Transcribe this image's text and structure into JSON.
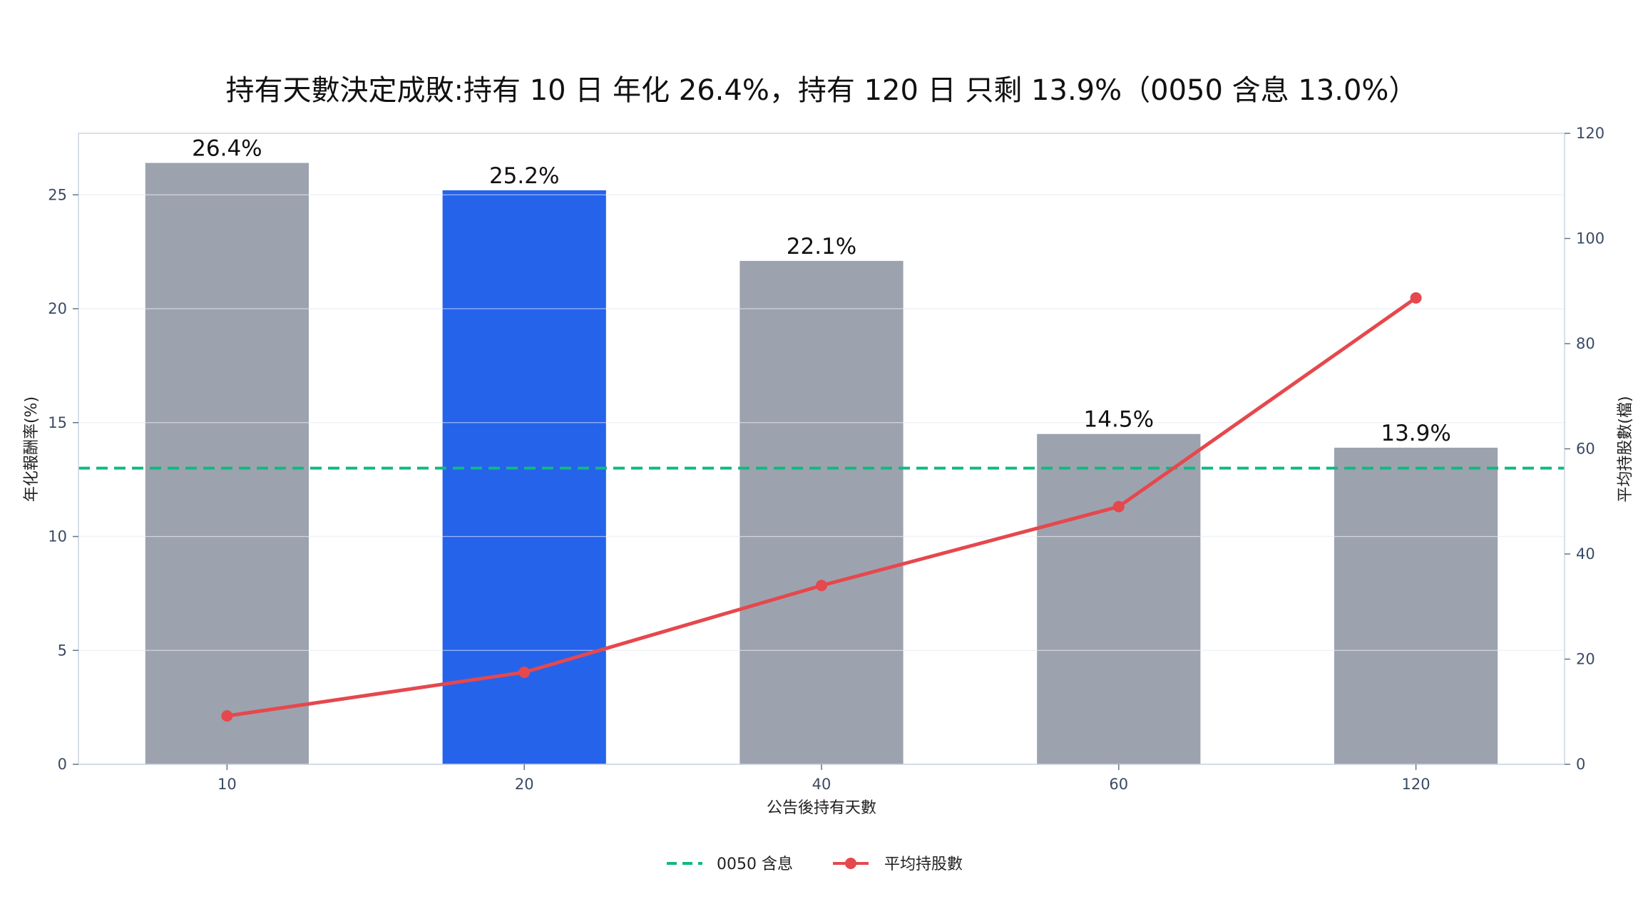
{
  "chart_data": {
    "type": "bar",
    "title": "持有天數決定成敗:持有 10 日 年化 26.4%，持有 120 日 只剩 13.9%（0050 含息 13.0%）",
    "xlabel": "公告後持有天數",
    "ylabel": "年化報酬率(%)",
    "y2label": "平均持股數(檔)",
    "categories": [
      "10",
      "20",
      "40",
      "60",
      "120"
    ],
    "series": [
      {
        "axis": "left",
        "kind": "bar",
        "values": [
          26.4,
          25.2,
          22.1,
          14.5,
          13.9
        ],
        "labels": [
          "26.4%",
          "25.2%",
          "22.1%",
          "14.5%",
          "13.9%"
        ],
        "colors": [
          "#9ca3af",
          "#2563eb",
          "#9ca3af",
          "#9ca3af",
          "#9ca3af"
        ]
      },
      {
        "axis": "right",
        "kind": "line",
        "name": "平均持股數",
        "values": [
          9.2,
          17.5,
          34,
          49,
          88.7
        ],
        "color": "#e5484d"
      }
    ],
    "reference_line": {
      "name": "0050 含息",
      "axis": "left",
      "value": 13.0,
      "color": "#10b981",
      "style": "dashed"
    },
    "ylim": [
      0,
      27.7
    ],
    "y2lim": [
      0,
      120
    ],
    "yticks": [
      "0",
      "5",
      "10",
      "15",
      "20",
      "25"
    ],
    "y2ticks": [
      "0",
      "20",
      "40",
      "60",
      "80",
      "100",
      "120"
    ],
    "grid": true,
    "legend_position": "bottom-center"
  }
}
